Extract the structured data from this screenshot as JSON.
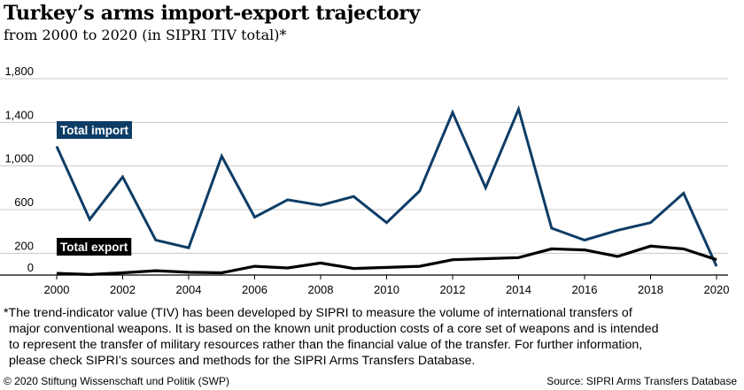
{
  "header": {
    "title": "Turkey’s arms import-export trajectory",
    "subtitle": "from 2000 to 2020 (in SIPRI TIV total)*"
  },
  "chart_data": {
    "type": "line",
    "title": "Turkey’s arms import-export trajectory",
    "subtitle": "from 2000 to 2020 (in SIPRI TIV total)*",
    "xlabel": "",
    "ylabel": "",
    "x": [
      2000,
      2001,
      2002,
      2003,
      2004,
      2005,
      2006,
      2007,
      2008,
      2009,
      2010,
      2011,
      2012,
      2013,
      2014,
      2015,
      2016,
      2017,
      2018,
      2019,
      2020
    ],
    "xticks": [
      "2000",
      "2002",
      "2004",
      "2006",
      "2008",
      "2010",
      "2012",
      "2014",
      "2016",
      "2018",
      "2020"
    ],
    "yticks": [
      "0",
      "200",
      "600",
      "1,000",
      "1,400",
      "1,800"
    ],
    "ylim": [
      0,
      1800
    ],
    "grid": true,
    "series": [
      {
        "name": "Total import",
        "color": "#0d3d66",
        "values": [
          1180,
          510,
          900,
          320,
          250,
          1090,
          530,
          690,
          640,
          720,
          480,
          770,
          1490,
          800,
          1520,
          430,
          320,
          410,
          480,
          750,
          80
        ]
      },
      {
        "name": "Total export",
        "color": "#000000",
        "values": [
          15,
          5,
          20,
          40,
          25,
          20,
          80,
          65,
          110,
          60,
          70,
          80,
          140,
          150,
          160,
          240,
          230,
          170,
          265,
          240,
          140
        ]
      }
    ]
  },
  "footnote": {
    "line1": "*The trend-indicator value (TIV) has been developed by SIPRI to measure the volume of international transfers of",
    "line2": "major conventional weapons. It is based on the known unit production costs of a core set of weapons and is intended",
    "line3": "to represent the transfer of military resources rather than the financial value of the transfer. For further information,",
    "line4": "please check SIPRI’s sources and methods for the SIPRI Arms Transfers Database."
  },
  "footer": {
    "copyright": "© 2020 Stiftung Wissenschaft und Politik (SWP)",
    "source": "Source: SIPRI Arms Transfers Database"
  }
}
